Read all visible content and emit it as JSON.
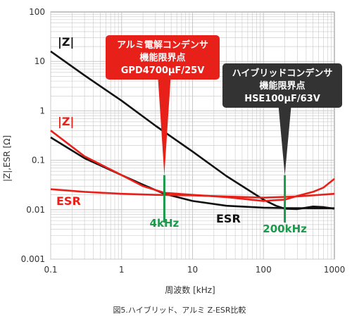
{
  "chart_data": {
    "type": "line",
    "x_scale": "log",
    "y_scale": "log",
    "xlim": [
      0.1,
      1000
    ],
    "ylim": [
      0.001,
      100
    ],
    "xlabel": "周波数 [kHz]",
    "ylabel": "|Z|,ESR [Ω]",
    "x_ticks": [
      "0.1",
      "1",
      "10",
      "100",
      "1000"
    ],
    "y_ticks": [
      "0.001",
      "0.01",
      "0.1",
      "1",
      "10",
      "100"
    ],
    "grid": true,
    "caption": "図5.ハイブリッド、アルミ Z-ESR比較",
    "series": [
      {
        "name": "|Z|",
        "color": "#111111",
        "x": [
          0.1,
          0.3,
          1,
          3,
          10,
          30,
          100,
          150,
          200,
          300,
          500,
          700,
          1000
        ],
        "y": [
          16,
          5.2,
          1.6,
          0.5,
          0.15,
          0.048,
          0.016,
          0.012,
          0.0105,
          0.0103,
          0.0116,
          0.0113,
          0.0105
        ]
      },
      {
        "name": "ESR",
        "color": "#111111",
        "x": [
          0.1,
          0.3,
          1,
          2,
          4,
          10,
          30,
          100,
          200,
          500,
          1000
        ],
        "y": [
          0.29,
          0.11,
          0.05,
          0.032,
          0.021,
          0.015,
          0.012,
          0.011,
          0.0108,
          0.0107,
          0.0107
        ]
      },
      {
        "name": "|Z|",
        "color": "#e8201a",
        "x": [
          0.1,
          0.3,
          1,
          2,
          4,
          10,
          30,
          100,
          200,
          300,
          500,
          700,
          1000
        ],
        "y": [
          0.4,
          0.12,
          0.05,
          0.03,
          0.022,
          0.02,
          0.018,
          0.015,
          0.016,
          0.019,
          0.023,
          0.028,
          0.042
        ]
      },
      {
        "name": "ESR",
        "color": "#e8201a",
        "x": [
          0.1,
          0.3,
          1,
          3,
          10,
          30,
          100,
          300,
          1000
        ],
        "y": [
          0.026,
          0.023,
          0.021,
          0.02,
          0.0195,
          0.0185,
          0.0175,
          0.0185,
          0.021
        ]
      }
    ],
    "annotations": {
      "z_black": "|Z|",
      "z_red": "|Z|",
      "esr_red": "ESR",
      "esr_black": "ESR",
      "limit_4k": "4kHz",
      "limit_4k_x": 4,
      "limit_200k": "200kHz",
      "limit_200k_x": 200,
      "callout_red": [
        "アルミ電解コンデンサ",
        "機能限界点",
        "GPD4700μF/25V"
      ],
      "callout_dark": [
        "ハイブリッドコンデンサ",
        "機能限界点",
        "HSE100μF/63V"
      ]
    }
  },
  "colors": {
    "black_line": "#111111",
    "red_line": "#e8201a",
    "green_marker": "#1a9a4a",
    "callout_red_bg": "#e8201a",
    "callout_dark_bg": "#333333",
    "grid": "#c8c8c8"
  }
}
